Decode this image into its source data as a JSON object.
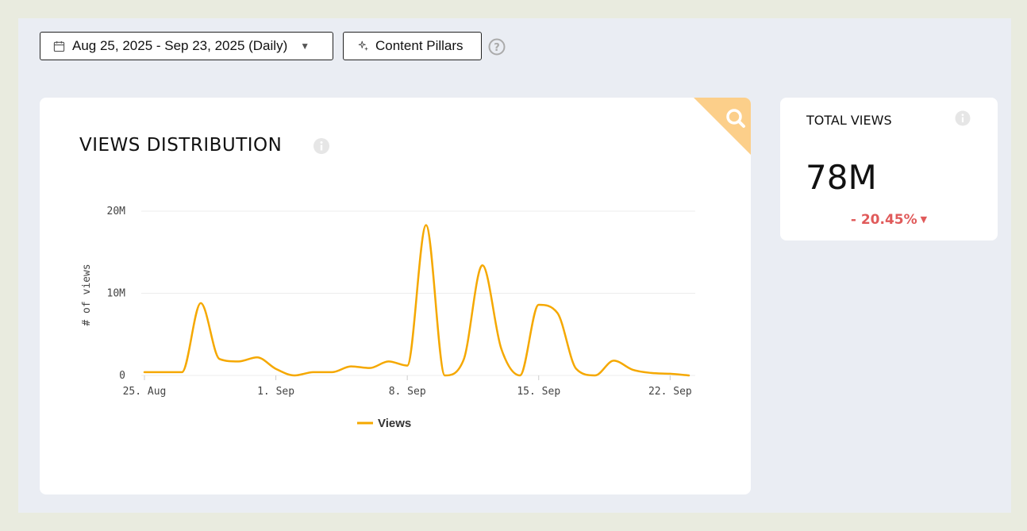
{
  "toolbar": {
    "date_range_label": "Aug 25, 2025 - Sep 23, 2025 (Daily)",
    "content_pillars_label": "Content Pillars"
  },
  "icons": {
    "date": "calendar-icon",
    "date_caret": "caret-down-icon",
    "pillars": "sparkle-icon",
    "help": "help-icon",
    "corner": "search-icon",
    "info": "info-icon"
  },
  "colors": {
    "series": "#f5a800",
    "corner": "#fccf8a",
    "negative": "#e05a5a"
  },
  "distribution": {
    "title": "VIEWS DISTRIBUTION"
  },
  "total_views": {
    "label": "TOTAL VIEWS",
    "value": "78M",
    "change": "- 20.45%"
  },
  "chart_data": {
    "type": "line",
    "title": "VIEWS DISTRIBUTION",
    "ylabel": "# of views",
    "xlabel": "",
    "ylim": [
      0,
      20000000
    ],
    "y_ticks": [
      {
        "value": 0,
        "label": "0"
      },
      {
        "value": 10000000,
        "label": "10M"
      },
      {
        "value": 20000000,
        "label": "20M"
      }
    ],
    "x_ticks": [
      {
        "day": 0,
        "label": "25. Aug"
      },
      {
        "day": 7,
        "label": "1. Sep"
      },
      {
        "day": 14,
        "label": "8. Sep"
      },
      {
        "day": 21,
        "label": "15. Sep"
      },
      {
        "day": 28,
        "label": "22. Sep"
      }
    ],
    "grid": true,
    "legend": "bottom-center",
    "series": [
      {
        "name": "Views",
        "x": [
          "2025-08-25",
          "2025-08-26",
          "2025-08-27",
          "2025-08-28",
          "2025-08-29",
          "2025-08-30",
          "2025-08-31",
          "2025-09-01",
          "2025-09-02",
          "2025-09-03",
          "2025-09-04",
          "2025-09-05",
          "2025-09-06",
          "2025-09-07",
          "2025-09-08",
          "2025-09-09",
          "2025-09-10",
          "2025-09-11",
          "2025-09-12",
          "2025-09-13",
          "2025-09-14",
          "2025-09-15",
          "2025-09-16",
          "2025-09-17",
          "2025-09-18",
          "2025-09-19",
          "2025-09-20",
          "2025-09-21",
          "2025-09-22",
          "2025-09-23"
        ],
        "values": [
          400000,
          400000,
          400000,
          8800000,
          2000000,
          1700000,
          2200000,
          800000,
          0,
          400000,
          400000,
          1100000,
          900000,
          1700000,
          1200000,
          18300000,
          0,
          1900000,
          13400000,
          3300000,
          0,
          8600000,
          7600000,
          800000,
          0,
          1800000,
          700000,
          300000,
          200000,
          0
        ]
      }
    ]
  }
}
